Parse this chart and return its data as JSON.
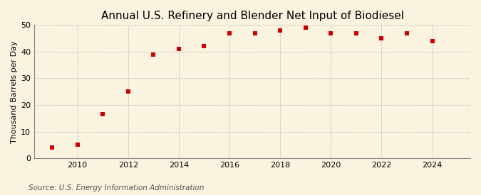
{
  "title": "Annual U.S. Refinery and Blender Net Input of Biodiesel",
  "ylabel": "Thousand Barrels per Day",
  "source": "Source: U.S. Energy Information Administration",
  "years": [
    2009,
    2010,
    2011,
    2012,
    2013,
    2014,
    2015,
    2016,
    2017,
    2018,
    2019,
    2020,
    2021,
    2022,
    2023,
    2024
  ],
  "values": [
    4.0,
    5.0,
    16.5,
    25.0,
    39.0,
    41.0,
    42.0,
    47.0,
    47.0,
    48.0,
    49.0,
    47.0,
    47.0,
    45.0,
    47.0,
    44.0
  ],
  "marker_color": "#cc0000",
  "marker": "s",
  "marker_size": 4,
  "ylim": [
    0,
    50
  ],
  "yticks": [
    0,
    10,
    20,
    30,
    40,
    50
  ],
  "xlim": [
    2008.3,
    2025.5
  ],
  "xticks": [
    2010,
    2012,
    2014,
    2016,
    2018,
    2020,
    2022,
    2024
  ],
  "background_color": "#faf3e0",
  "grid_color": "#aaaaaa",
  "title_fontsize": 11,
  "label_fontsize": 8,
  "tick_fontsize": 8,
  "source_fontsize": 7.5
}
